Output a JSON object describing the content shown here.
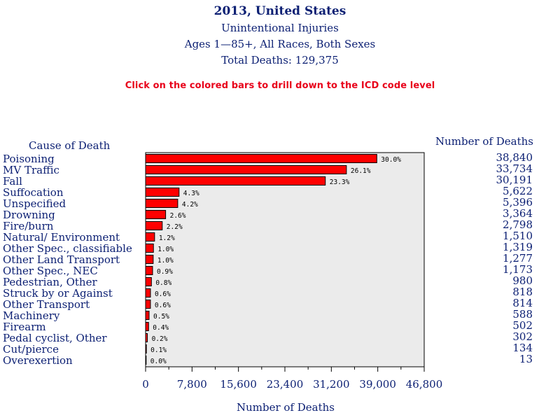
{
  "header": {
    "title": "2013, United States",
    "subtitle1": "Unintentional Injuries",
    "subtitle2": "Ages 1—85+, All Races, Both Sexes",
    "subtitle3": "Total Deaths: 129,375"
  },
  "note": "Click on the colored bars to drill down to the ICD code level",
  "colors": {
    "bar": "#ff0000",
    "plot_bg": "#ebebeb",
    "text": "#0b1f73",
    "note": "#e8001a"
  },
  "chart_data": {
    "type": "bar",
    "orientation": "horizontal",
    "title": "2013, United States",
    "y_header": "Cause of Death",
    "value_header": "Number of Deaths",
    "xlabel": "Number of Deaths",
    "xlim": [
      0,
      46800
    ],
    "xticks": [
      0,
      7800,
      15600,
      23400,
      31200,
      39000,
      46800
    ],
    "xtick_labels": [
      "0",
      "7,800",
      "15,600",
      "23,400",
      "31,200",
      "39,000",
      "46,800"
    ],
    "categories": [
      "Poisoning",
      "MV Traffic",
      "Fall",
      "Suffocation",
      "Unspecified",
      "Drowning",
      "Fire/burn",
      "Natural/ Environment",
      "Other Spec., classifiable",
      "Other Land Transport",
      "Other Spec., NEC",
      "Pedestrian, Other",
      "Struck by or Against",
      "Other Transport",
      "Machinery",
      "Firearm",
      "Pedal cyclist, Other",
      "Cut/pierce",
      "Overexertion"
    ],
    "values": [
      38840,
      33734,
      30191,
      5622,
      5396,
      3364,
      2798,
      1510,
      1319,
      1277,
      1173,
      980,
      818,
      814,
      588,
      502,
      302,
      134,
      13
    ],
    "value_labels": [
      "38,840",
      "33,734",
      "30,191",
      "5,622",
      "5,396",
      "3,364",
      "2,798",
      "1,510",
      "1,319",
      "1,277",
      "1,173",
      "980",
      "818",
      "814",
      "588",
      "502",
      "302",
      "134",
      "13"
    ],
    "percent_labels": [
      "30.0%",
      "26.1%",
      "23.3%",
      "4.3%",
      "4.2%",
      "2.6%",
      "2.2%",
      "1.2%",
      "1.0%",
      "1.0%",
      "0.9%",
      "0.8%",
      "0.6%",
      "0.6%",
      "0.5%",
      "0.4%",
      "0.2%",
      "0.1%",
      "0.0%"
    ]
  }
}
